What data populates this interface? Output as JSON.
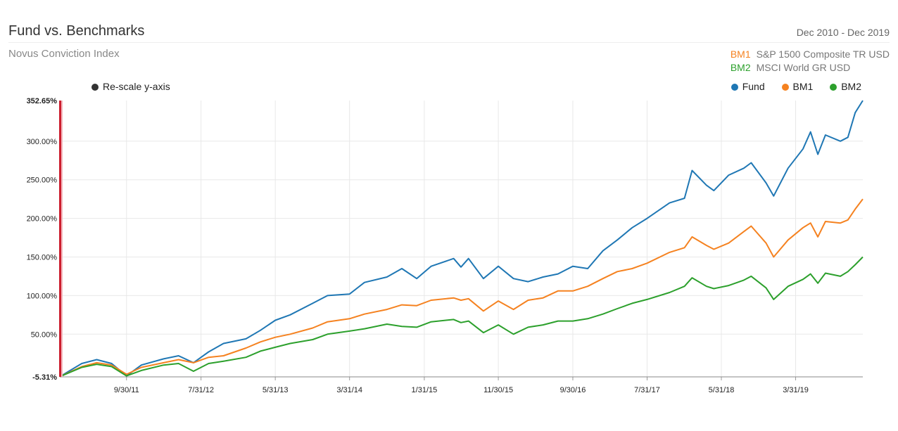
{
  "header": {
    "title": "Fund vs. Benchmarks",
    "date_range": "Dec 2010 - Dec 2019",
    "subtitle": "Novus Conviction Index"
  },
  "benchmarks": [
    {
      "code": "BM1",
      "name": "S&P 1500 Composite TR USD",
      "color": "#f58220"
    },
    {
      "code": "BM2",
      "name": "MSCI World GR USD",
      "color": "#2ca02c"
    }
  ],
  "controls": {
    "rescale_label": "Re-scale y-axis",
    "rescale_color": "#333333"
  },
  "legend": [
    {
      "label": "Fund",
      "color": "#1f77b4"
    },
    {
      "label": "BM1",
      "color": "#f58220"
    },
    {
      "label": "BM2",
      "color": "#2ca02c"
    }
  ],
  "chart_data": {
    "type": "line",
    "title": "Fund vs. Benchmarks",
    "ylim": [
      -5.31,
      352.65
    ],
    "y_ticks": [
      -5.31,
      50,
      100,
      150,
      200,
      250,
      300,
      352.65
    ],
    "y_tick_labels": [
      "-5.31%",
      "50.00%",
      "100.00%",
      "150.00%",
      "200.00%",
      "250.00%",
      "300.00%",
      "352.65%"
    ],
    "x_range": [
      "2010-12-31",
      "2019-12-31"
    ],
    "x_ticks": [
      {
        "date": "2011-09-30",
        "label": "9/30/11"
      },
      {
        "date": "2012-07-31",
        "label": "7/31/12"
      },
      {
        "date": "2013-05-31",
        "label": "5/31/13"
      },
      {
        "date": "2014-03-31",
        "label": "3/31/14"
      },
      {
        "date": "2015-01-31",
        "label": "1/31/15"
      },
      {
        "date": "2015-11-30",
        "label": "11/30/15"
      },
      {
        "date": "2016-09-30",
        "label": "9/30/16"
      },
      {
        "date": "2017-07-31",
        "label": "7/31/17"
      },
      {
        "date": "2018-05-31",
        "label": "5/31/18"
      },
      {
        "date": "2019-03-31",
        "label": "3/31/19"
      }
    ],
    "grid": true,
    "legend_position": "top-right",
    "series": [
      {
        "name": "Fund",
        "color": "#1f77b4",
        "points": [
          [
            "2010-12-31",
            -5
          ],
          [
            "2011-03-31",
            12
          ],
          [
            "2011-05-31",
            17
          ],
          [
            "2011-07-31",
            12
          ],
          [
            "2011-09-30",
            -4
          ],
          [
            "2011-11-30",
            10
          ],
          [
            "2012-02-29",
            18
          ],
          [
            "2012-04-30",
            22
          ],
          [
            "2012-06-30",
            13
          ],
          [
            "2012-08-31",
            27
          ],
          [
            "2012-10-31",
            38
          ],
          [
            "2013-01-31",
            44
          ],
          [
            "2013-03-31",
            55
          ],
          [
            "2013-05-31",
            68
          ],
          [
            "2013-07-31",
            75
          ],
          [
            "2013-10-31",
            90
          ],
          [
            "2013-12-31",
            100
          ],
          [
            "2014-03-31",
            102
          ],
          [
            "2014-05-31",
            117
          ],
          [
            "2014-08-31",
            124
          ],
          [
            "2014-10-31",
            135
          ],
          [
            "2014-12-31",
            122
          ],
          [
            "2015-02-28",
            138
          ],
          [
            "2015-05-31",
            148
          ],
          [
            "2015-06-30",
            137
          ],
          [
            "2015-07-31",
            148
          ],
          [
            "2015-09-30",
            122
          ],
          [
            "2015-11-30",
            138
          ],
          [
            "2016-01-31",
            122
          ],
          [
            "2016-03-31",
            118
          ],
          [
            "2016-05-31",
            124
          ],
          [
            "2016-07-31",
            128
          ],
          [
            "2016-09-30",
            138
          ],
          [
            "2016-11-30",
            135
          ],
          [
            "2017-01-31",
            158
          ],
          [
            "2017-03-31",
            172
          ],
          [
            "2017-05-31",
            188
          ],
          [
            "2017-07-31",
            200
          ],
          [
            "2017-10-31",
            220
          ],
          [
            "2017-12-31",
            226
          ],
          [
            "2018-01-31",
            262
          ],
          [
            "2018-03-31",
            243
          ],
          [
            "2018-04-30",
            236
          ],
          [
            "2018-06-30",
            256
          ],
          [
            "2018-08-31",
            265
          ],
          [
            "2018-09-30",
            272
          ],
          [
            "2018-11-30",
            246
          ],
          [
            "2018-12-31",
            229
          ],
          [
            "2019-02-28",
            265
          ],
          [
            "2019-04-30",
            290
          ],
          [
            "2019-05-31",
            312
          ],
          [
            "2019-06-30",
            283
          ],
          [
            "2019-07-31",
            308
          ],
          [
            "2019-09-30",
            300
          ],
          [
            "2019-10-31",
            305
          ],
          [
            "2019-11-30",
            337
          ],
          [
            "2019-12-31",
            352.65
          ]
        ]
      },
      {
        "name": "BM1",
        "color": "#f58220",
        "points": [
          [
            "2010-12-31",
            -5
          ],
          [
            "2011-03-31",
            8
          ],
          [
            "2011-05-31",
            13
          ],
          [
            "2011-07-31",
            10
          ],
          [
            "2011-09-30",
            -2
          ],
          [
            "2011-11-30",
            7
          ],
          [
            "2012-02-29",
            13
          ],
          [
            "2012-04-30",
            17
          ],
          [
            "2012-06-30",
            13
          ],
          [
            "2012-08-31",
            20
          ],
          [
            "2012-10-31",
            22
          ],
          [
            "2013-01-31",
            32
          ],
          [
            "2013-03-31",
            40
          ],
          [
            "2013-05-31",
            46
          ],
          [
            "2013-07-31",
            50
          ],
          [
            "2013-10-31",
            58
          ],
          [
            "2013-12-31",
            66
          ],
          [
            "2014-03-31",
            70
          ],
          [
            "2014-05-31",
            76
          ],
          [
            "2014-08-31",
            82
          ],
          [
            "2014-10-31",
            88
          ],
          [
            "2014-12-31",
            87
          ],
          [
            "2015-02-28",
            94
          ],
          [
            "2015-05-31",
            97
          ],
          [
            "2015-06-30",
            94
          ],
          [
            "2015-07-31",
            96
          ],
          [
            "2015-09-30",
            80
          ],
          [
            "2015-11-30",
            93
          ],
          [
            "2016-01-31",
            82
          ],
          [
            "2016-03-31",
            94
          ],
          [
            "2016-05-31",
            97
          ],
          [
            "2016-07-31",
            106
          ],
          [
            "2016-09-30",
            106
          ],
          [
            "2016-11-30",
            112
          ],
          [
            "2017-01-31",
            122
          ],
          [
            "2017-03-31",
            131
          ],
          [
            "2017-05-31",
            135
          ],
          [
            "2017-07-31",
            142
          ],
          [
            "2017-10-31",
            156
          ],
          [
            "2017-12-31",
            162
          ],
          [
            "2018-01-31",
            176
          ],
          [
            "2018-03-31",
            165
          ],
          [
            "2018-04-30",
            160
          ],
          [
            "2018-06-30",
            168
          ],
          [
            "2018-08-31",
            183
          ],
          [
            "2018-09-30",
            190
          ],
          [
            "2018-11-30",
            168
          ],
          [
            "2018-12-31",
            150
          ],
          [
            "2019-02-28",
            172
          ],
          [
            "2019-04-30",
            188
          ],
          [
            "2019-05-31",
            194
          ],
          [
            "2019-06-30",
            176
          ],
          [
            "2019-07-31",
            196
          ],
          [
            "2019-09-30",
            194
          ],
          [
            "2019-10-31",
            198
          ],
          [
            "2019-11-30",
            212
          ],
          [
            "2019-12-31",
            225
          ]
        ]
      },
      {
        "name": "BM2",
        "color": "#2ca02c",
        "points": [
          [
            "2010-12-31",
            -5
          ],
          [
            "2011-03-31",
            7
          ],
          [
            "2011-05-31",
            11
          ],
          [
            "2011-07-31",
            8
          ],
          [
            "2011-09-30",
            -4
          ],
          [
            "2011-11-30",
            3
          ],
          [
            "2012-02-29",
            10
          ],
          [
            "2012-04-30",
            12
          ],
          [
            "2012-06-30",
            2
          ],
          [
            "2012-08-31",
            12
          ],
          [
            "2012-10-31",
            15
          ],
          [
            "2013-01-31",
            20
          ],
          [
            "2013-03-31",
            28
          ],
          [
            "2013-05-31",
            33
          ],
          [
            "2013-07-31",
            38
          ],
          [
            "2013-10-31",
            43
          ],
          [
            "2013-12-31",
            50
          ],
          [
            "2014-03-31",
            54
          ],
          [
            "2014-05-31",
            57
          ],
          [
            "2014-08-31",
            63
          ],
          [
            "2014-10-31",
            60
          ],
          [
            "2014-12-31",
            59
          ],
          [
            "2015-02-28",
            66
          ],
          [
            "2015-05-31",
            69
          ],
          [
            "2015-06-30",
            65
          ],
          [
            "2015-07-31",
            67
          ],
          [
            "2015-09-30",
            52
          ],
          [
            "2015-11-30",
            62
          ],
          [
            "2016-01-31",
            50
          ],
          [
            "2016-03-31",
            59
          ],
          [
            "2016-05-31",
            62
          ],
          [
            "2016-07-31",
            67
          ],
          [
            "2016-09-30",
            67
          ],
          [
            "2016-11-30",
            70
          ],
          [
            "2017-01-31",
            76
          ],
          [
            "2017-03-31",
            83
          ],
          [
            "2017-05-31",
            90
          ],
          [
            "2017-07-31",
            95
          ],
          [
            "2017-10-31",
            104
          ],
          [
            "2017-12-31",
            112
          ],
          [
            "2018-01-31",
            123
          ],
          [
            "2018-03-31",
            112
          ],
          [
            "2018-04-30",
            109
          ],
          [
            "2018-06-30",
            113
          ],
          [
            "2018-08-31",
            120
          ],
          [
            "2018-09-30",
            125
          ],
          [
            "2018-11-30",
            110
          ],
          [
            "2018-12-31",
            95
          ],
          [
            "2019-02-28",
            112
          ],
          [
            "2019-04-30",
            121
          ],
          [
            "2019-05-31",
            128
          ],
          [
            "2019-06-30",
            116
          ],
          [
            "2019-07-31",
            129
          ],
          [
            "2019-09-30",
            125
          ],
          [
            "2019-10-31",
            131
          ],
          [
            "2019-11-30",
            140
          ],
          [
            "2019-12-31",
            150
          ]
        ]
      }
    ]
  }
}
